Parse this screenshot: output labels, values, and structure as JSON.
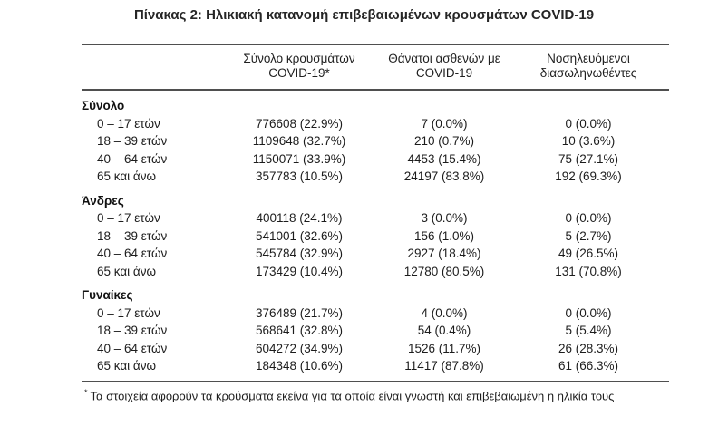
{
  "title": "Πίνακας 2: Ηλικιακή κατανομή επιβεβαιωμένων κρουσμάτων COVID-19",
  "table": {
    "headers": [
      {
        "line1": "Σύνολο κρουσμάτων",
        "line2": "COVID-19*"
      },
      {
        "line1": "Θάνατοι ασθενών με",
        "line2": "COVID-19"
      },
      {
        "line1": "Νοσηλευόμενοι",
        "line2": "διασωληνωθέντες"
      }
    ],
    "sections": [
      {
        "label": "Σύνολο",
        "rows": [
          {
            "age": "0 – 17 ετών",
            "cases": "776608 (22.9%)",
            "deaths": "7 (0.0%)",
            "intubated": "0 (0.0%)"
          },
          {
            "age": "18 – 39 ετών",
            "cases": "1109648 (32.7%)",
            "deaths": "210 (0.7%)",
            "intubated": "10 (3.6%)"
          },
          {
            "age": "40 – 64 ετών",
            "cases": "1150071 (33.9%)",
            "deaths": "4453 (15.4%)",
            "intubated": "75 (27.1%)"
          },
          {
            "age": "65 και άνω",
            "cases": "357783 (10.5%)",
            "deaths": "24197 (83.8%)",
            "intubated": "192 (69.3%)"
          }
        ]
      },
      {
        "label": "Άνδρες",
        "rows": [
          {
            "age": "0 – 17 ετών",
            "cases": "400118 (24.1%)",
            "deaths": "3 (0.0%)",
            "intubated": "0 (0.0%)"
          },
          {
            "age": "18 – 39 ετών",
            "cases": "541001 (32.6%)",
            "deaths": "156 (1.0%)",
            "intubated": "5 (2.7%)"
          },
          {
            "age": "40 – 64 ετών",
            "cases": "545784 (32.9%)",
            "deaths": "2927 (18.4%)",
            "intubated": "49 (26.5%)"
          },
          {
            "age": "65 και άνω",
            "cases": "173429 (10.4%)",
            "deaths": "12780 (80.5%)",
            "intubated": "131 (70.8%)"
          }
        ]
      },
      {
        "label": "Γυναίκες",
        "rows": [
          {
            "age": "0 – 17 ετών",
            "cases": "376489 (21.7%)",
            "deaths": "4 (0.0%)",
            "intubated": "0 (0.0%)"
          },
          {
            "age": "18 – 39 ετών",
            "cases": "568641 (32.8%)",
            "deaths": "54 (0.4%)",
            "intubated": "5 (5.4%)"
          },
          {
            "age": "40 – 64 ετών",
            "cases": "604272 (34.9%)",
            "deaths": "1526 (11.7%)",
            "intubated": "26 (28.3%)"
          },
          {
            "age": "65 και άνω",
            "cases": "184348 (10.6%)",
            "deaths": "11417 (87.8%)",
            "intubated": "61 (66.3%)"
          }
        ]
      }
    ]
  },
  "footnote": {
    "marker": "*",
    "text": "Τα στοιχεία αφορούν τα κρούσματα εκείνα για τα οποία είναι γνωστή και επιβεβαιωμένη η ηλικία τους"
  },
  "colors": {
    "rule": "#4f4f4f",
    "text": "#1c1c1c",
    "background": "#ffffff"
  }
}
